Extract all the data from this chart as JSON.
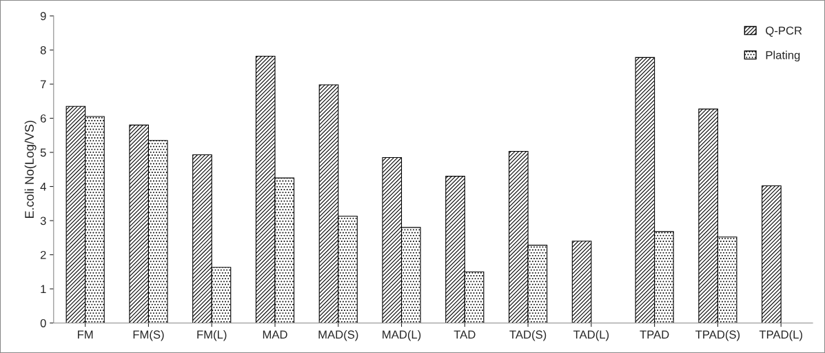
{
  "chart_data": {
    "type": "bar",
    "ylabel": "E.coli No(Log/VS)",
    "categories": [
      "FM",
      "FM(S)",
      "FM(L)",
      "MAD",
      "MAD(S)",
      "MAD(L)",
      "TAD",
      "TAD(S)",
      "TAD(L)",
      "TPAD",
      "TPAD(S)",
      "TPAD(L)"
    ],
    "series": [
      {
        "name": "Q-PCR",
        "color": "#000000",
        "values": [
          6.35,
          5.8,
          4.93,
          7.82,
          6.98,
          4.85,
          4.3,
          5.03,
          2.4,
          7.78,
          6.27,
          4.02
        ]
      },
      {
        "name": "Plating",
        "color": "#000000",
        "values": [
          6.05,
          5.35,
          1.63,
          4.25,
          3.13,
          2.8,
          1.5,
          2.28,
          null,
          2.68,
          2.52,
          null
        ]
      }
    ],
    "ylim": [
      0,
      9
    ],
    "yticks": [
      0,
      1,
      2,
      3,
      4,
      5,
      6,
      7,
      8,
      9
    ],
    "grid": false,
    "legend": "top right"
  }
}
